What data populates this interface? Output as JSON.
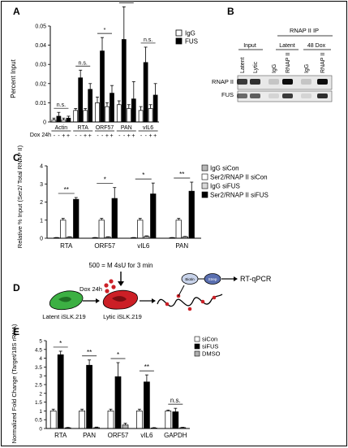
{
  "panels": {
    "A": {
      "letter": "A",
      "legend": [
        {
          "label": "IgG",
          "color": "#ffffff"
        },
        {
          "label": "FUS",
          "color": "#000000"
        }
      ],
      "treatment_label": "Dox 24h",
      "treatment_signs": [
        "-",
        "-",
        "+",
        "+"
      ],
      "significance": [
        "n.s.",
        "n.s.",
        "*",
        "*",
        "n.s."
      ]
    },
    "B": {
      "letter": "B",
      "header": "RNAP II IP",
      "group_labels": [
        "Input",
        "Latent",
        "48 Dox"
      ],
      "lane_labels": [
        "Latent",
        "Lytic",
        "IgG",
        "RNAP II",
        "IgG",
        "RNAP II"
      ],
      "band_labels": [
        "RNAP II",
        "FUS"
      ]
    },
    "C": {
      "letter": "C",
      "legend": [
        {
          "label": "IgG siCon",
          "color": "#b8b8b8"
        },
        {
          "label": "Ser2/RNAP II siCon",
          "color": "#ffffff"
        },
        {
          "label": "IgG siFUS",
          "color": "#d8d8d8"
        },
        {
          "label": "Ser2/RNAP II siFUS",
          "color": "#000000"
        }
      ],
      "significance": [
        "**",
        "*",
        "*",
        "**"
      ]
    },
    "D": {
      "letter": "D",
      "pulse_label": "500 = M 4sU for 3 min",
      "dox_label": "Dox 24h",
      "latent_label": "Latent iSLK.219",
      "lytic_label": "Lytic iSLK.219",
      "biotin_label": "Biotin",
      "strep_label": "Strep",
      "readout_label": "RT-qPCR"
    },
    "E": {
      "letter": "E",
      "legend": [
        {
          "label": "siCon",
          "color": "#ffffff"
        },
        {
          "label": "siFUS",
          "color": "#000000"
        },
        {
          "label": "DMSO",
          "color": "#b0b0b0"
        }
      ],
      "significance": [
        "*",
        "**",
        "*",
        "**",
        "n.s."
      ]
    }
  },
  "chart_data": [
    {
      "type": "bar",
      "panel": "A",
      "ylabel": "Percent Input",
      "ylim": [
        0,
        0.05
      ],
      "yticks": [
        "0",
        "0.01",
        "0.02",
        "0.03",
        "0.04",
        "0.05"
      ],
      "categories": [
        "Actin",
        "RTA",
        "ORF57",
        "PAN",
        "vIL6"
      ],
      "series": [
        {
          "name": "IgG",
          "values": [
            0.001,
            0.006,
            0.01,
            0.009,
            0.006
          ]
        },
        {
          "name": "FUS",
          "values": [
            0.003,
            0.023,
            0.037,
            0.043,
            0.031
          ]
        },
        {
          "name": "IgG",
          "values": [
            0.001,
            0.006,
            0.008,
            0.007,
            0.007
          ]
        },
        {
          "name": "FUS",
          "values": [
            0.002,
            0.017,
            0.015,
            0.012,
            0.014
          ]
        }
      ],
      "errors": [
        [
          0.001,
          0.001,
          0.003,
          0.002,
          0.002
        ],
        [
          0.002,
          0.004,
          0.007,
          0.017,
          0.008
        ],
        [
          0.001,
          0.001,
          0.002,
          0.002,
          0.002
        ],
        [
          0.001,
          0.003,
          0.004,
          0.009,
          0.006
        ]
      ]
    },
    {
      "type": "bar",
      "panel": "C",
      "ylabel": "Relative % Input (Ser2/ Total RNAP II)",
      "ylim": [
        0,
        4
      ],
      "yticks": [
        "0",
        "1",
        "2",
        "3",
        "4"
      ],
      "categories": [
        "RTA",
        "ORF57",
        "vIL6",
        "PAN"
      ],
      "series": [
        {
          "name": "IgG siCon",
          "values": [
            0.03,
            0.03,
            0.03,
            0.03
          ]
        },
        {
          "name": "Ser2/RNAP II siCon",
          "values": [
            1.0,
            1.0,
            1.0,
            1.0
          ]
        },
        {
          "name": "IgG siFUS",
          "values": [
            0.06,
            0.06,
            0.1,
            0.08
          ]
        },
        {
          "name": "Ser2/RNAP II siFUS",
          "values": [
            2.15,
            2.2,
            2.45,
            2.6
          ]
        }
      ],
      "errors": [
        [
          0.01,
          0.01,
          0.01,
          0.01
        ],
        [
          0.1,
          0.1,
          0.1,
          0.1
        ],
        [
          0.02,
          0.02,
          0.03,
          0.02
        ],
        [
          0.1,
          0.6,
          0.6,
          0.5
        ]
      ]
    },
    {
      "type": "bar",
      "panel": "E",
      "ylabel": "Normalized Fold Change (Target/18S rRNA)",
      "ylim": [
        0,
        5
      ],
      "yticks": [
        "0",
        "0.5",
        "1",
        "1.5",
        "2",
        "2.5",
        "3",
        "3.5",
        "4",
        "4.5",
        "5"
      ],
      "categories": [
        "RTA",
        "PAN",
        "ORF57",
        "vIL6",
        "GAPDH"
      ],
      "series": [
        {
          "name": "siCon",
          "values": [
            1.0,
            1.0,
            1.0,
            1.0,
            1.0
          ]
        },
        {
          "name": "siFUS",
          "values": [
            4.2,
            3.6,
            2.95,
            2.65,
            0.95
          ]
        },
        {
          "name": "DMSO",
          "values": [
            0.04,
            0.05,
            0.2,
            0.03,
            0.05
          ]
        }
      ],
      "errors": [
        [
          0.1,
          0.1,
          0.1,
          0.1,
          0.05
        ],
        [
          0.2,
          0.3,
          0.8,
          0.4,
          0.2
        ],
        [
          0.02,
          0.03,
          0.1,
          0.02,
          0.02
        ]
      ]
    }
  ]
}
